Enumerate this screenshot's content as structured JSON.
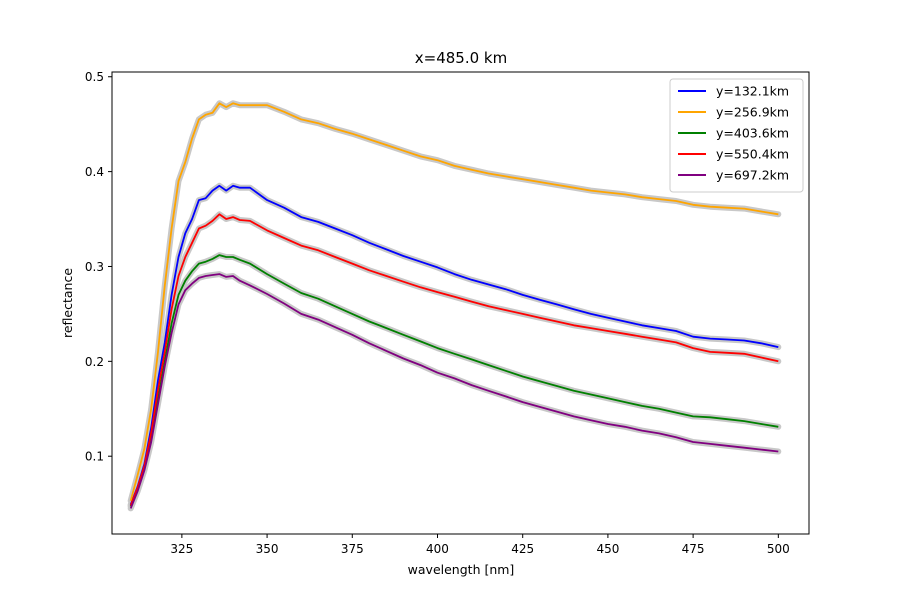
{
  "chart_data": {
    "type": "line",
    "title": "x=485.0 km",
    "xlabel": "wavelength [nm]",
    "ylabel": "reflectance",
    "xlim": [
      304.5,
      509
    ],
    "ylim": [
      0.018,
      0.505
    ],
    "xticks": [
      325,
      350,
      375,
      400,
      425,
      450,
      475,
      500
    ],
    "yticks": [
      0.1,
      0.2,
      0.3,
      0.4,
      0.5
    ],
    "xtick_labels": [
      "325",
      "350",
      "375",
      "400",
      "425",
      "450",
      "475",
      "500"
    ],
    "ytick_labels": [
      "0.1",
      "0.2",
      "0.3",
      "0.4",
      "0.5"
    ],
    "grid": false,
    "legend_position": "top-right",
    "uncertainty_band_color": "#c8c8c8",
    "x": [
      310,
      312,
      314,
      316,
      318,
      320,
      322,
      324,
      326,
      328,
      330,
      332,
      334,
      336,
      338,
      340,
      342,
      345,
      350,
      355,
      360,
      365,
      370,
      375,
      380,
      385,
      390,
      395,
      400,
      405,
      410,
      415,
      420,
      425,
      430,
      435,
      440,
      445,
      450,
      455,
      460,
      465,
      470,
      475,
      480,
      485,
      490,
      495,
      500
    ],
    "series": [
      {
        "name": "y=132.1km",
        "color": "#0000ff",
        "values": [
          0.049,
          0.068,
          0.092,
          0.13,
          0.18,
          0.22,
          0.27,
          0.31,
          0.335,
          0.35,
          0.37,
          0.372,
          0.38,
          0.385,
          0.38,
          0.385,
          0.383,
          0.383,
          0.37,
          0.362,
          0.352,
          0.347,
          0.34,
          0.333,
          0.325,
          0.318,
          0.311,
          0.305,
          0.299,
          0.292,
          0.286,
          0.281,
          0.276,
          0.27,
          0.265,
          0.26,
          0.255,
          0.25,
          0.246,
          0.242,
          0.238,
          0.235,
          0.232,
          0.226,
          0.224,
          0.223,
          0.222,
          0.219,
          0.215
        ]
      },
      {
        "name": "y=256.9km",
        "color": "#ffa500",
        "values": [
          0.053,
          0.08,
          0.108,
          0.15,
          0.21,
          0.28,
          0.34,
          0.39,
          0.41,
          0.435,
          0.455,
          0.46,
          0.462,
          0.472,
          0.468,
          0.472,
          0.47,
          0.47,
          0.47,
          0.463,
          0.455,
          0.451,
          0.445,
          0.44,
          0.434,
          0.428,
          0.422,
          0.416,
          0.412,
          0.406,
          0.402,
          0.398,
          0.395,
          0.392,
          0.389,
          0.386,
          0.383,
          0.38,
          0.378,
          0.376,
          0.373,
          0.371,
          0.369,
          0.365,
          0.363,
          0.362,
          0.361,
          0.358,
          0.355
        ]
      },
      {
        "name": "y=403.6km",
        "color": "#008000",
        "values": [
          0.047,
          0.066,
          0.088,
          0.12,
          0.16,
          0.2,
          0.24,
          0.27,
          0.285,
          0.295,
          0.303,
          0.305,
          0.308,
          0.312,
          0.31,
          0.31,
          0.307,
          0.303,
          0.292,
          0.282,
          0.272,
          0.266,
          0.258,
          0.25,
          0.242,
          0.235,
          0.228,
          0.221,
          0.214,
          0.208,
          0.202,
          0.196,
          0.19,
          0.184,
          0.179,
          0.174,
          0.169,
          0.165,
          0.161,
          0.157,
          0.153,
          0.15,
          0.146,
          0.142,
          0.141,
          0.139,
          0.137,
          0.134,
          0.131
        ]
      },
      {
        "name": "y=550.4km",
        "color": "#ff0000",
        "values": [
          0.048,
          0.067,
          0.09,
          0.125,
          0.17,
          0.21,
          0.255,
          0.29,
          0.31,
          0.325,
          0.34,
          0.343,
          0.348,
          0.355,
          0.35,
          0.352,
          0.349,
          0.348,
          0.338,
          0.33,
          0.322,
          0.317,
          0.31,
          0.303,
          0.296,
          0.29,
          0.284,
          0.278,
          0.273,
          0.268,
          0.263,
          0.258,
          0.254,
          0.25,
          0.246,
          0.242,
          0.238,
          0.235,
          0.232,
          0.229,
          0.226,
          0.223,
          0.22,
          0.214,
          0.21,
          0.209,
          0.208,
          0.204,
          0.2
        ]
      },
      {
        "name": "y=697.2km",
        "color": "#800080",
        "values": [
          0.045,
          0.063,
          0.085,
          0.115,
          0.155,
          0.195,
          0.23,
          0.26,
          0.275,
          0.282,
          0.288,
          0.29,
          0.291,
          0.292,
          0.289,
          0.29,
          0.285,
          0.28,
          0.271,
          0.261,
          0.25,
          0.244,
          0.236,
          0.228,
          0.219,
          0.211,
          0.203,
          0.196,
          0.188,
          0.182,
          0.175,
          0.169,
          0.163,
          0.157,
          0.152,
          0.147,
          0.142,
          0.138,
          0.134,
          0.131,
          0.127,
          0.124,
          0.12,
          0.115,
          0.113,
          0.111,
          0.109,
          0.107,
          0.105
        ]
      }
    ]
  }
}
